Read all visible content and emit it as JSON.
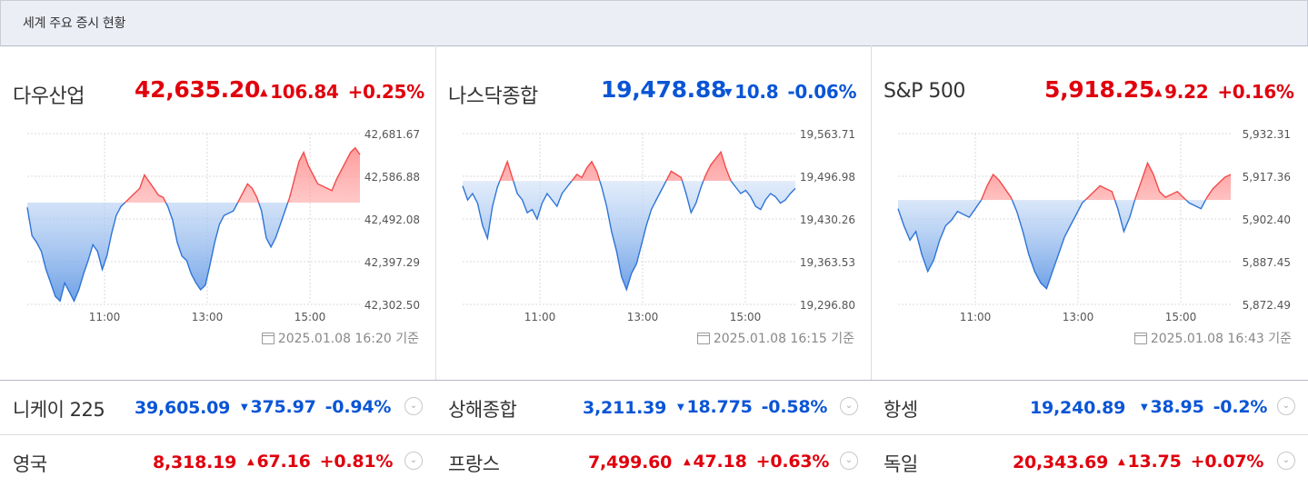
{
  "header": {
    "title": "세계 주요 증시 현황"
  },
  "panels": [
    {
      "name": "다우산업",
      "price": "42,635.20",
      "change": "106.84",
      "pct": "+0.25%",
      "dir": "up",
      "base": "2025.01.08 16:20 기준",
      "y_ticks": [
        "42,681.67",
        "42,586.88",
        "42,492.08",
        "42,397.29",
        "42,302.50"
      ],
      "x_ticks": [
        "11:00",
        "13:00",
        "15:00"
      ],
      "chart_data": {
        "type": "line",
        "title": "",
        "x_ticks": [
          "11:00",
          "13:00",
          "15:00"
        ],
        "ylim": [
          42302.5,
          42681.67
        ],
        "baseline": 42528.36,
        "series": [
          {
            "values": [
              42518,
              42455,
              42440,
              42420,
              42380,
              42350,
              42320,
              42310,
              42350,
              42330,
              42310,
              42335,
              42370,
              42400,
              42435,
              42420,
              42380,
              42410,
              42460,
              42500,
              42520,
              42530,
              42540,
              42550,
              42560,
              42590,
              42575,
              42560,
              42545,
              42540,
              42520,
              42490,
              42440,
              42410,
              42400,
              42370,
              42350,
              42335,
              42345,
              42390,
              42440,
              42480,
              42500,
              42505,
              42510,
              42530,
              42550,
              42570,
              42560,
              42540,
              42510,
              42450,
              42430,
              42450,
              42480,
              42510,
              42540,
              42580,
              42620,
              42640,
              42610,
              42590,
              42570,
              42565,
              42560,
              42555,
              42580,
              42600,
              42620,
              42640,
              42650,
              42635
            ]
          }
        ]
      }
    },
    {
      "name": "나스닥종합",
      "price": "19,478.88",
      "change": "10.8",
      "pct": "-0.06%",
      "dir": "down",
      "base": "2025.01.08 16:15 기준",
      "y_ticks": [
        "19,563.71",
        "19,496.98",
        "19,430.26",
        "19,363.53",
        "19,296.80"
      ],
      "x_ticks": [
        "11:00",
        "13:00",
        "15:00"
      ],
      "chart_data": {
        "type": "line",
        "title": "",
        "x_ticks": [
          "11:00",
          "13:00",
          "15:00"
        ],
        "ylim": [
          19296.8,
          19563.71
        ],
        "baseline": 19489.68,
        "series": [
          {
            "values": [
              19482,
              19460,
              19470,
              19455,
              19420,
              19400,
              19450,
              19480,
              19500,
              19520,
              19495,
              19470,
              19460,
              19440,
              19445,
              19430,
              19455,
              19470,
              19460,
              19450,
              19470,
              19480,
              19490,
              19500,
              19495,
              19510,
              19520,
              19505,
              19480,
              19450,
              19410,
              19380,
              19340,
              19320,
              19345,
              19360,
              19390,
              19420,
              19445,
              19460,
              19475,
              19490,
              19505,
              19500,
              19495,
              19470,
              19440,
              19455,
              19480,
              19500,
              19515,
              19525,
              19535,
              19510,
              19490,
              19480,
              19470,
              19475,
              19465,
              19450,
              19445,
              19460,
              19470,
              19465,
              19455,
              19460,
              19470,
              19478
            ]
          }
        ]
      }
    },
    {
      "name": "S&P 500",
      "price": "5,918.25",
      "change": "9.22",
      "pct": "+0.16%",
      "dir": "up",
      "base": "2025.01.08 16:43 기준",
      "y_ticks": [
        "5,932.31",
        "5,917.36",
        "5,902.40",
        "5,887.45",
        "5,872.49"
      ],
      "x_ticks": [
        "11:00",
        "13:00",
        "15:00"
      ],
      "chart_data": {
        "type": "line",
        "title": "",
        "x_ticks": [
          "11:00",
          "13:00",
          "15:00"
        ],
        "ylim": [
          5872.49,
          5932.31
        ],
        "baseline": 5909.03,
        "series": [
          {
            "values": [
              5906,
              5900,
              5895,
              5898,
              5890,
              5884,
              5888,
              5895,
              5900,
              5902,
              5905,
              5904,
              5903,
              5906,
              5909,
              5914,
              5918,
              5916,
              5913,
              5910,
              5905,
              5898,
              5890,
              5884,
              5880,
              5878,
              5884,
              5890,
              5896,
              5900,
              5904,
              5908,
              5910,
              5912,
              5914,
              5913,
              5912,
              5906,
              5898,
              5903,
              5910,
              5916,
              5922,
              5918,
              5912,
              5910,
              5911,
              5912,
              5910,
              5908,
              5907,
              5906,
              5910,
              5913,
              5915,
              5917,
              5918
            ]
          }
        ]
      }
    }
  ],
  "rows": [
    [
      {
        "name": "니케이 225",
        "price": "39,605.09",
        "change": "375.97",
        "pct": "-0.94%",
        "dir": "down"
      },
      {
        "name": "상해종합",
        "price": "3,211.39",
        "change": "18.775",
        "pct": "-0.58%",
        "dir": "down"
      },
      {
        "name": "항셍",
        "price": "19,240.89",
        "change": "38.95",
        "pct": "-0.2%",
        "dir": "down"
      }
    ],
    [
      {
        "name": "영국",
        "price": "8,318.19",
        "change": "67.16",
        "pct": "+0.81%",
        "dir": "up"
      },
      {
        "name": "프랑스",
        "price": "7,499.60",
        "change": "47.18",
        "pct": "+0.63%",
        "dir": "up"
      },
      {
        "name": "독일",
        "price": "20,343.69",
        "change": "13.75",
        "pct": "+0.07%",
        "dir": "up"
      }
    ]
  ],
  "colors": {
    "up": "#e0000d",
    "down": "#0a55d6",
    "line_up": "#f24b4b",
    "line_down": "#2f74d6"
  },
  "icons": {
    "up": "▲",
    "down": "▼",
    "more": "chevron-down-icon",
    "calendar": "calendar-icon"
  }
}
